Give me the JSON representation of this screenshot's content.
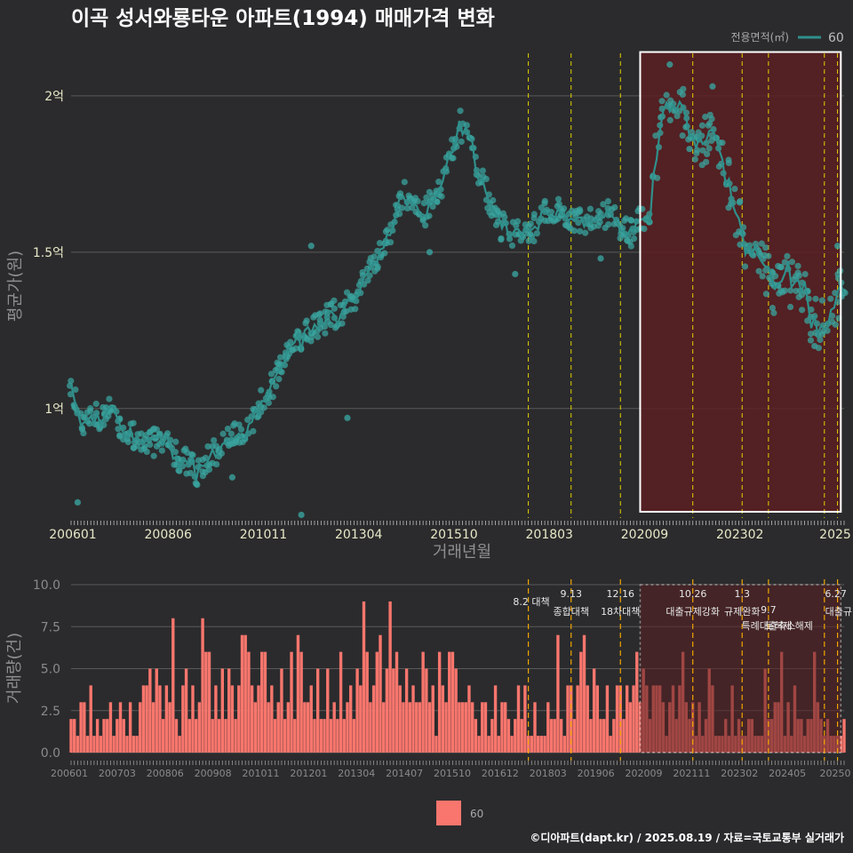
{
  "colors": {
    "background": "#2b2b2d",
    "line": "#2f8f8b",
    "point": "#3aa39d",
    "bar": "#f8766d",
    "vline": "#e6d200",
    "vline_bottom": "#f0a500",
    "shade": "#5a1f22",
    "grid": "#5a5a5a"
  },
  "footer": "©디아파트(dapt.kr) / 2025.08.19 / 자료=국토교통부 실거래가",
  "chart_data": [
    {
      "type": "line",
      "title": "이곡 성서와룡타운 아파트(1994) 매매가격 변화",
      "xlabel": "거래년월",
      "ylabel": "평균가(원)",
      "ylim": [
        0.65,
        2.17
      ],
      "y_unit": "억",
      "yticks": [
        1,
        1.5,
        2
      ],
      "ytick_labels": [
        "1억",
        "1.5억",
        "2억"
      ],
      "xlim": [
        "2006-01",
        "2025-08"
      ],
      "xtick_labels": [
        "200601",
        "200806",
        "201011",
        "201304",
        "201510",
        "201803",
        "202009",
        "202302",
        "2025"
      ],
      "legend": {
        "title": "전용면적(㎡)",
        "entries": [
          "60"
        ]
      },
      "series_name": "60",
      "anchors": [
        [
          "2006-01",
          1.05
        ],
        [
          "2006-04",
          0.95
        ],
        [
          "2007-01",
          0.99
        ],
        [
          "2007-08",
          0.91
        ],
        [
          "2008-06",
          0.88
        ],
        [
          "2009-03",
          0.8
        ],
        [
          "2009-06",
          0.84
        ],
        [
          "2010-01",
          0.9
        ],
        [
          "2010-08",
          0.96
        ],
        [
          "2011-01",
          1.05
        ],
        [
          "2011-06",
          1.18
        ],
        [
          "2012-01",
          1.25
        ],
        [
          "2012-06",
          1.28
        ],
        [
          "2013-01",
          1.33
        ],
        [
          "2013-06",
          1.4
        ],
        [
          "2014-01",
          1.55
        ],
        [
          "2014-06",
          1.68
        ],
        [
          "2015-01",
          1.63
        ],
        [
          "2015-06",
          1.72
        ],
        [
          "2015-11",
          1.92
        ],
        [
          "2016-03",
          1.82
        ],
        [
          "2016-10",
          1.6
        ],
        [
          "2017-03",
          1.56
        ],
        [
          "2017-08",
          1.55
        ],
        [
          "2018-01",
          1.62
        ],
        [
          "2018-06",
          1.63
        ],
        [
          "2019-01",
          1.6
        ],
        [
          "2019-08",
          1.62
        ],
        [
          "2020-03",
          1.56
        ],
        [
          "2020-09",
          1.66
        ],
        [
          "2021-01",
          1.92
        ],
        [
          "2021-06",
          1.98
        ],
        [
          "2021-09",
          1.87
        ],
        [
          "2022-06",
          1.85
        ],
        [
          "2022-12",
          1.58
        ],
        [
          "2023-06",
          1.45
        ],
        [
          "2023-12",
          1.38
        ],
        [
          "2024-06",
          1.42
        ],
        [
          "2024-12",
          1.25
        ],
        [
          "2025-08",
          1.4
        ]
      ],
      "outliers": [
        [
          "2006-03",
          0.7
        ],
        [
          "2010-02",
          0.78
        ],
        [
          "2011-11",
          0.66
        ],
        [
          "2012-02",
          1.52
        ],
        [
          "2013-01",
          0.97
        ],
        [
          "2015-02",
          1.5
        ],
        [
          "2017-04",
          1.43
        ],
        [
          "2019-06",
          1.48
        ],
        [
          "2021-03",
          2.1
        ],
        [
          "2021-09",
          1.83
        ],
        [
          "2022-04",
          2.03
        ],
        [
          "2023-10",
          1.4
        ],
        [
          "2024-11",
          1.2
        ],
        [
          "2025-06",
          1.52
        ]
      ],
      "highlight_range": [
        "2020-06",
        "2025-07"
      ],
      "policy_lines": [
        "2017-08",
        "2018-09",
        "2019-12",
        "2021-10",
        "2023-01",
        "2023-09",
        "2025-02",
        "2025-06"
      ]
    },
    {
      "type": "bar",
      "ylabel": "거래량(건)",
      "ylim": [
        0,
        10
      ],
      "yticks": [
        0,
        2.5,
        5,
        7.5,
        10
      ],
      "ytick_labels": [
        "0.0",
        "2.5",
        "5.0",
        "7.5",
        "10.0"
      ],
      "xtick_labels": [
        "200601",
        "200703",
        "200806",
        "200908",
        "201011",
        "201201",
        "201304",
        "201407",
        "201510",
        "201612",
        "201803",
        "201906",
        "202009",
        "202111",
        "202302",
        "202405",
        "20250"
      ],
      "legend": {
        "entries": [
          "60"
        ]
      },
      "series_name": "60",
      "volume_profile": [
        [
          "2006",
          2.5
        ],
        [
          "2007",
          2.2
        ],
        [
          "2008",
          2.8
        ],
        [
          "2009",
          3.2
        ],
        [
          "2010",
          3.8
        ],
        [
          "2011",
          4.2
        ],
        [
          "2012",
          3.4
        ],
        [
          "2013",
          3.8
        ],
        [
          "2014",
          3.6
        ],
        [
          "2015",
          3.4
        ],
        [
          "2016",
          2.6
        ],
        [
          "2017",
          2.2
        ],
        [
          "2018",
          2.3
        ],
        [
          "2019",
          2.6
        ],
        [
          "2020",
          3.6
        ],
        [
          "2021",
          2.6
        ],
        [
          "2022",
          1.5
        ],
        [
          "2023",
          1.6
        ],
        [
          "2024",
          2.0
        ],
        [
          "2025",
          1.5
        ]
      ],
      "highlight_range": [
        "2020-06",
        "2025-07"
      ],
      "annotations": [
        {
          "date": "2017-08",
          "date_label": "",
          "text": "8.2 대책"
        },
        {
          "date": "2018-09",
          "date_label": "9.13",
          "text": "종합대책"
        },
        {
          "date": "2019-12",
          "date_label": "12.16",
          "text": "18차대책"
        },
        {
          "date": "2021-10",
          "date_label": "10.26",
          "text": "대출규제강화"
        },
        {
          "date": "2023-01",
          "date_label": "1.3",
          "text": "규제완화"
        },
        {
          "date": "2023-09",
          "date_label": "9.7",
          "text": "특례대출축소"
        },
        {
          "date": "2025-02",
          "date_label": "",
          "text": "토허제 해제"
        },
        {
          "date": "2025-06",
          "date_label": "6.27",
          "text": "대출규"
        }
      ]
    }
  ]
}
